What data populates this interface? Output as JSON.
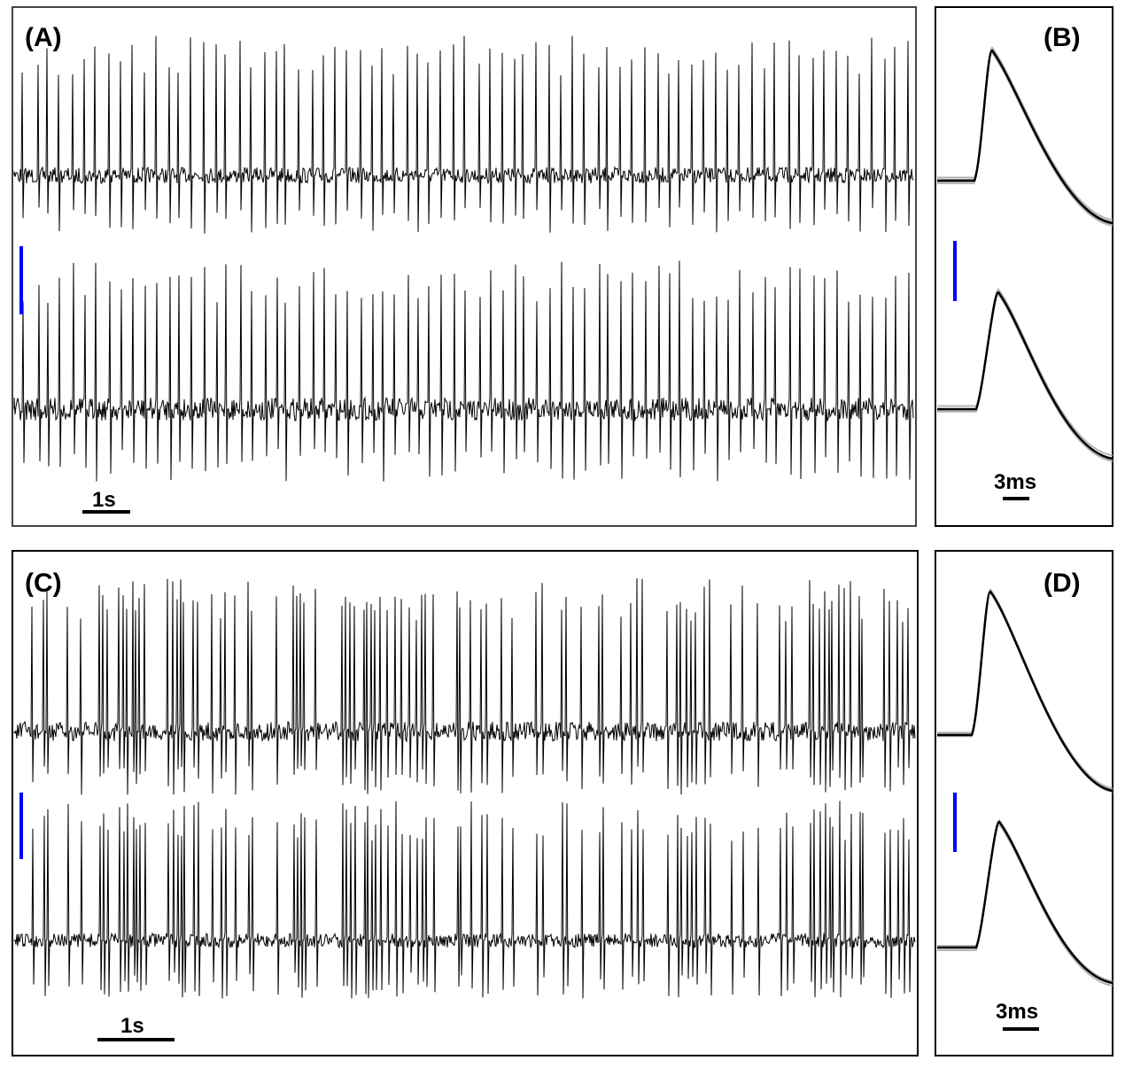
{
  "chart_data": [
    {
      "panel": "(A)",
      "type": "line",
      "description_kind": "extracellular recording traces",
      "traces": 2,
      "time_scale_label": "1s",
      "amplitude_scale_color": "#0000ff",
      "trace_color": "#000000",
      "approx_spike_count_per_trace": 75,
      "firing_pattern": "regular"
    },
    {
      "panel": "(B)",
      "type": "line",
      "description_kind": "overlaid spike waveforms with mean",
      "traces": 2,
      "time_scale_label": "3ms",
      "amplitude_scale_color": "#0000ff",
      "mean_color": "#000000",
      "overlay_color": "#aaaaaa"
    },
    {
      "panel": "(C)",
      "type": "line",
      "description_kind": "extracellular recording traces",
      "traces": 2,
      "time_scale_label": "1s",
      "amplitude_scale_color": "#0000ff",
      "trace_color": "#000000",
      "approx_spike_count_per_trace": 110,
      "firing_pattern": "irregular"
    },
    {
      "panel": "(D)",
      "type": "line",
      "description_kind": "overlaid spike waveforms with mean",
      "traces": 2,
      "time_scale_label": "3ms",
      "amplitude_scale_color": "#0000ff",
      "mean_color": "#000000",
      "overlay_color": "#aaaaaa"
    }
  ]
}
